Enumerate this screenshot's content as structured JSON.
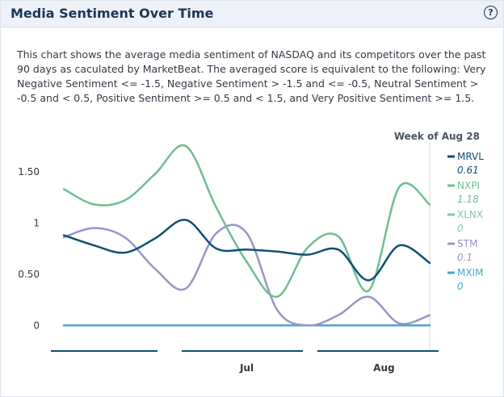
{
  "widget": {
    "title": "Media Sentiment Over Time",
    "help_icon": "?",
    "description": "This chart shows the average media sentiment of NASDAQ and its competitors over the past 90 days as caculated by MarketBeat. The averaged score is equivalent to the following: Very Negative Sentiment <= -1.5, Negative Sentiment > -1.5 and <= -0.5, Neutral Sentiment > -0.5 and < 0.5, Positive Sentiment >= 0.5 and < 1.5, and Very Positive Sentiment >= 1.5."
  },
  "chart_data": {
    "type": "line",
    "title": "",
    "xlabel": "",
    "ylabel": "",
    "hover_label": "Week of Aug 28",
    "x": [
      0,
      1,
      2,
      3,
      4,
      5,
      6,
      7,
      8,
      9,
      10,
      11,
      12
    ],
    "x_tick_labels": [
      {
        "label": "Jul",
        "x": 6.0
      },
      {
        "label": "Aug",
        "x": 10.5
      }
    ],
    "y_ticks": [
      {
        "value": 0,
        "label": "0"
      },
      {
        "value": 0.5,
        "label": "0.50"
      },
      {
        "value": 1,
        "label": "1"
      },
      {
        "value": 1.5,
        "label": "1.50"
      }
    ],
    "ylim": [
      -0.1,
      1.75
    ],
    "xlim": [
      0,
      12
    ],
    "grid": false,
    "legend_position": "right",
    "series": [
      {
        "name": "MRVL",
        "latest": "0.61",
        "color": "#0e4f73",
        "values": [
          0.88,
          0.78,
          0.71,
          0.85,
          1.03,
          0.75,
          0.74,
          0.72,
          0.69,
          0.74,
          0.44,
          0.78,
          0.61
        ]
      },
      {
        "name": "NXPI",
        "latest": "1.18",
        "color": "#6fbd92",
        "values": [
          1.33,
          1.18,
          1.22,
          1.48,
          1.75,
          1.15,
          0.62,
          0.28,
          0.76,
          0.87,
          0.34,
          1.35,
          1.18
        ]
      },
      {
        "name": "XLNX",
        "latest": "0",
        "color": "#7ec9a8",
        "values": [
          0,
          0,
          0,
          0,
          0,
          0,
          0,
          0,
          0,
          0,
          0,
          0,
          0
        ]
      },
      {
        "name": "STM",
        "latest": "0.1",
        "color": "#9795c8",
        "values": [
          0.86,
          0.95,
          0.86,
          0.55,
          0.36,
          0.9,
          0.9,
          0.15,
          0.0,
          0.1,
          0.28,
          0.02,
          0.1
        ]
      },
      {
        "name": "MXIM",
        "latest": "0",
        "color": "#4aa6c9",
        "values": [
          0,
          0,
          0,
          0,
          0,
          0,
          0,
          0,
          0,
          0,
          0,
          0,
          0
        ]
      }
    ]
  }
}
